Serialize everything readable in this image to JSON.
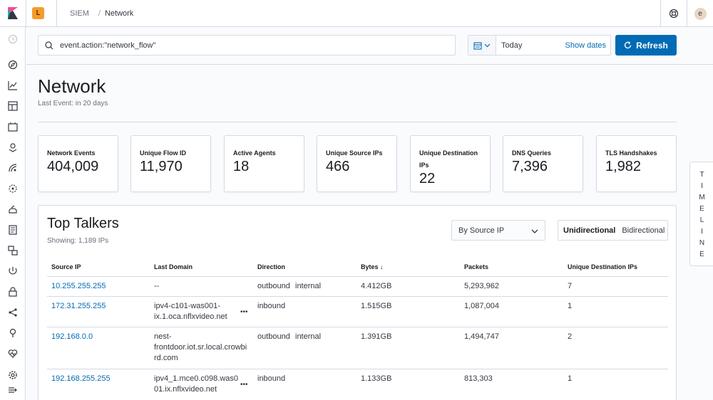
{
  "header": {
    "space_initial": "L",
    "breadcrumb_app": "SIEM",
    "breadcrumb_page": "Network",
    "user_initial": "e"
  },
  "icons": {
    "logo": "kibana-logo-icon",
    "help": "help-icon",
    "search": "search-icon",
    "calendar": "calendar-icon",
    "refresh": "refresh-icon"
  },
  "colors": {
    "accent": "#006bb4",
    "space_badge": "#f59c2b"
  },
  "querybar": {
    "query": "event.action:\"network_flow\"",
    "date_value": "Today",
    "show_dates": "Show dates",
    "refresh_label": "Refresh"
  },
  "page": {
    "title": "Network",
    "subtitle": "Last Event: in 20 days"
  },
  "stats": [
    {
      "label": "Network Events",
      "value": "404,009"
    },
    {
      "label": "Unique Flow ID",
      "value": "11,970"
    },
    {
      "label": "Active Agents",
      "value": "18"
    },
    {
      "label": "Unique Source IPs",
      "value": "466"
    },
    {
      "label": "Unique Destination IPs",
      "value": "22"
    },
    {
      "label": "DNS Queries",
      "value": "7,396"
    },
    {
      "label": "TLS Handshakes",
      "value": "1,982"
    }
  ],
  "timeline_label": [
    "T",
    "I",
    "M",
    "E",
    "L",
    "I",
    "N",
    "E"
  ],
  "top_talkers": {
    "title": "Top Talkers",
    "subtitle": "Showing: 1,189 IPs",
    "select_value": "By Source IP",
    "toggle_unidirectional": "Unidirectional",
    "toggle_bidirectional": "Bidirectional",
    "columns": [
      "Source IP",
      "Last Domain",
      "Direction",
      "Bytes ↓",
      "Packets",
      "Unique Destination IPs"
    ],
    "rows": [
      {
        "ip": "10.255.255.255",
        "domain_lines": [
          "--"
        ],
        "more": "",
        "direction": "outbound",
        "direction2": "internal",
        "bytes": "4.412GB",
        "packets": "5,293,962",
        "unique_dest": "7"
      },
      {
        "ip": "172.31.255.255",
        "domain_lines": [
          "ipv4-c101-was001-",
          "ix.1.oca.nflxvideo.net"
        ],
        "more": "•••",
        "direction": "inbound",
        "direction2": "",
        "bytes": "1.515GB",
        "packets": "1,087,004",
        "unique_dest": "1"
      },
      {
        "ip": "192.168.0.0",
        "domain_lines": [
          "nest-",
          "frontdoor.iot.sr.local.crowbi",
          "rd.com"
        ],
        "more": "",
        "direction": "outbound",
        "direction2": "internal",
        "bytes": "1.391GB",
        "packets": "1,494,747",
        "unique_dest": "2"
      },
      {
        "ip": "192.168.255.255",
        "domain_lines": [
          "ipv4_1.mce0.c098.was0",
          "01.ix.nflxvideo.net"
        ],
        "more": "•••",
        "direction": "inbound",
        "direction2": "",
        "bytes": "1.133GB",
        "packets": "813,303",
        "unique_dest": "1"
      }
    ]
  }
}
